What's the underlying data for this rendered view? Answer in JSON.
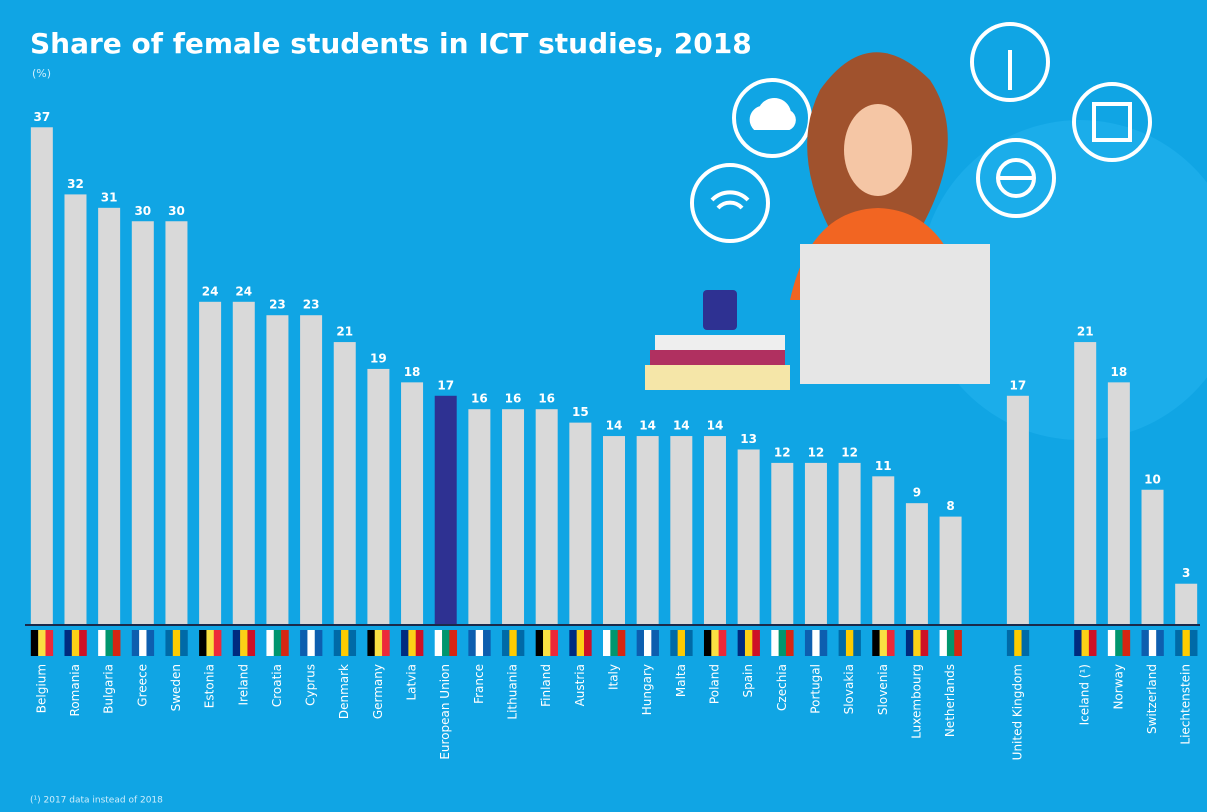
{
  "chart_data": {
    "type": "bar",
    "title": "Share of female students in ICT studies, 2018",
    "subtitle": "(%)",
    "footnote": "(¹) 2017 data instead of 2018",
    "categories": [
      "Belgium",
      "Romania",
      "Bulgaria",
      "Greece",
      "Sweden",
      "Estonia",
      "Ireland",
      "Croatia",
      "Cyprus",
      "Denmark",
      "Germany",
      "Latvia",
      "European Union",
      "France",
      "Lithuania",
      "Finland",
      "Austria",
      "Italy",
      "Hungary",
      "Malta",
      "Poland",
      "Spain",
      "Czechia",
      "Portugal",
      "Slovakia",
      "Slovenia",
      "Luxembourg",
      "Netherlands",
      null,
      "United Kingdom",
      null,
      "Iceland (¹)",
      "Norway",
      "Switzerland",
      "Liechtenstein"
    ],
    "values": [
      37,
      32,
      31,
      30,
      30,
      24,
      24,
      23,
      23,
      21,
      19,
      18,
      17,
      16,
      16,
      16,
      15,
      14,
      14,
      14,
      14,
      13,
      12,
      12,
      12,
      11,
      9,
      8,
      null,
      17,
      null,
      21,
      18,
      10,
      3
    ],
    "colors": [
      "#d9d9d9",
      "#d9d9d9",
      "#d9d9d9",
      "#d9d9d9",
      "#d9d9d9",
      "#d9d9d9",
      "#d9d9d9",
      "#d9d9d9",
      "#d9d9d9",
      "#d9d9d9",
      "#d9d9d9",
      "#d9d9d9",
      "#2e3192",
      "#d9d9d9",
      "#d9d9d9",
      "#d9d9d9",
      "#d9d9d9",
      "#d9d9d9",
      "#d9d9d9",
      "#d9d9d9",
      "#d9d9d9",
      "#d9d9d9",
      "#d9d9d9",
      "#d9d9d9",
      "#d9d9d9",
      "#d9d9d9",
      "#d9d9d9",
      "#d9d9d9",
      null,
      "#d9d9d9",
      null,
      "#d9d9d9",
      "#d9d9d9",
      "#d9d9d9",
      "#d9d9d9"
    ],
    "ylim": [
      0,
      40
    ]
  }
}
